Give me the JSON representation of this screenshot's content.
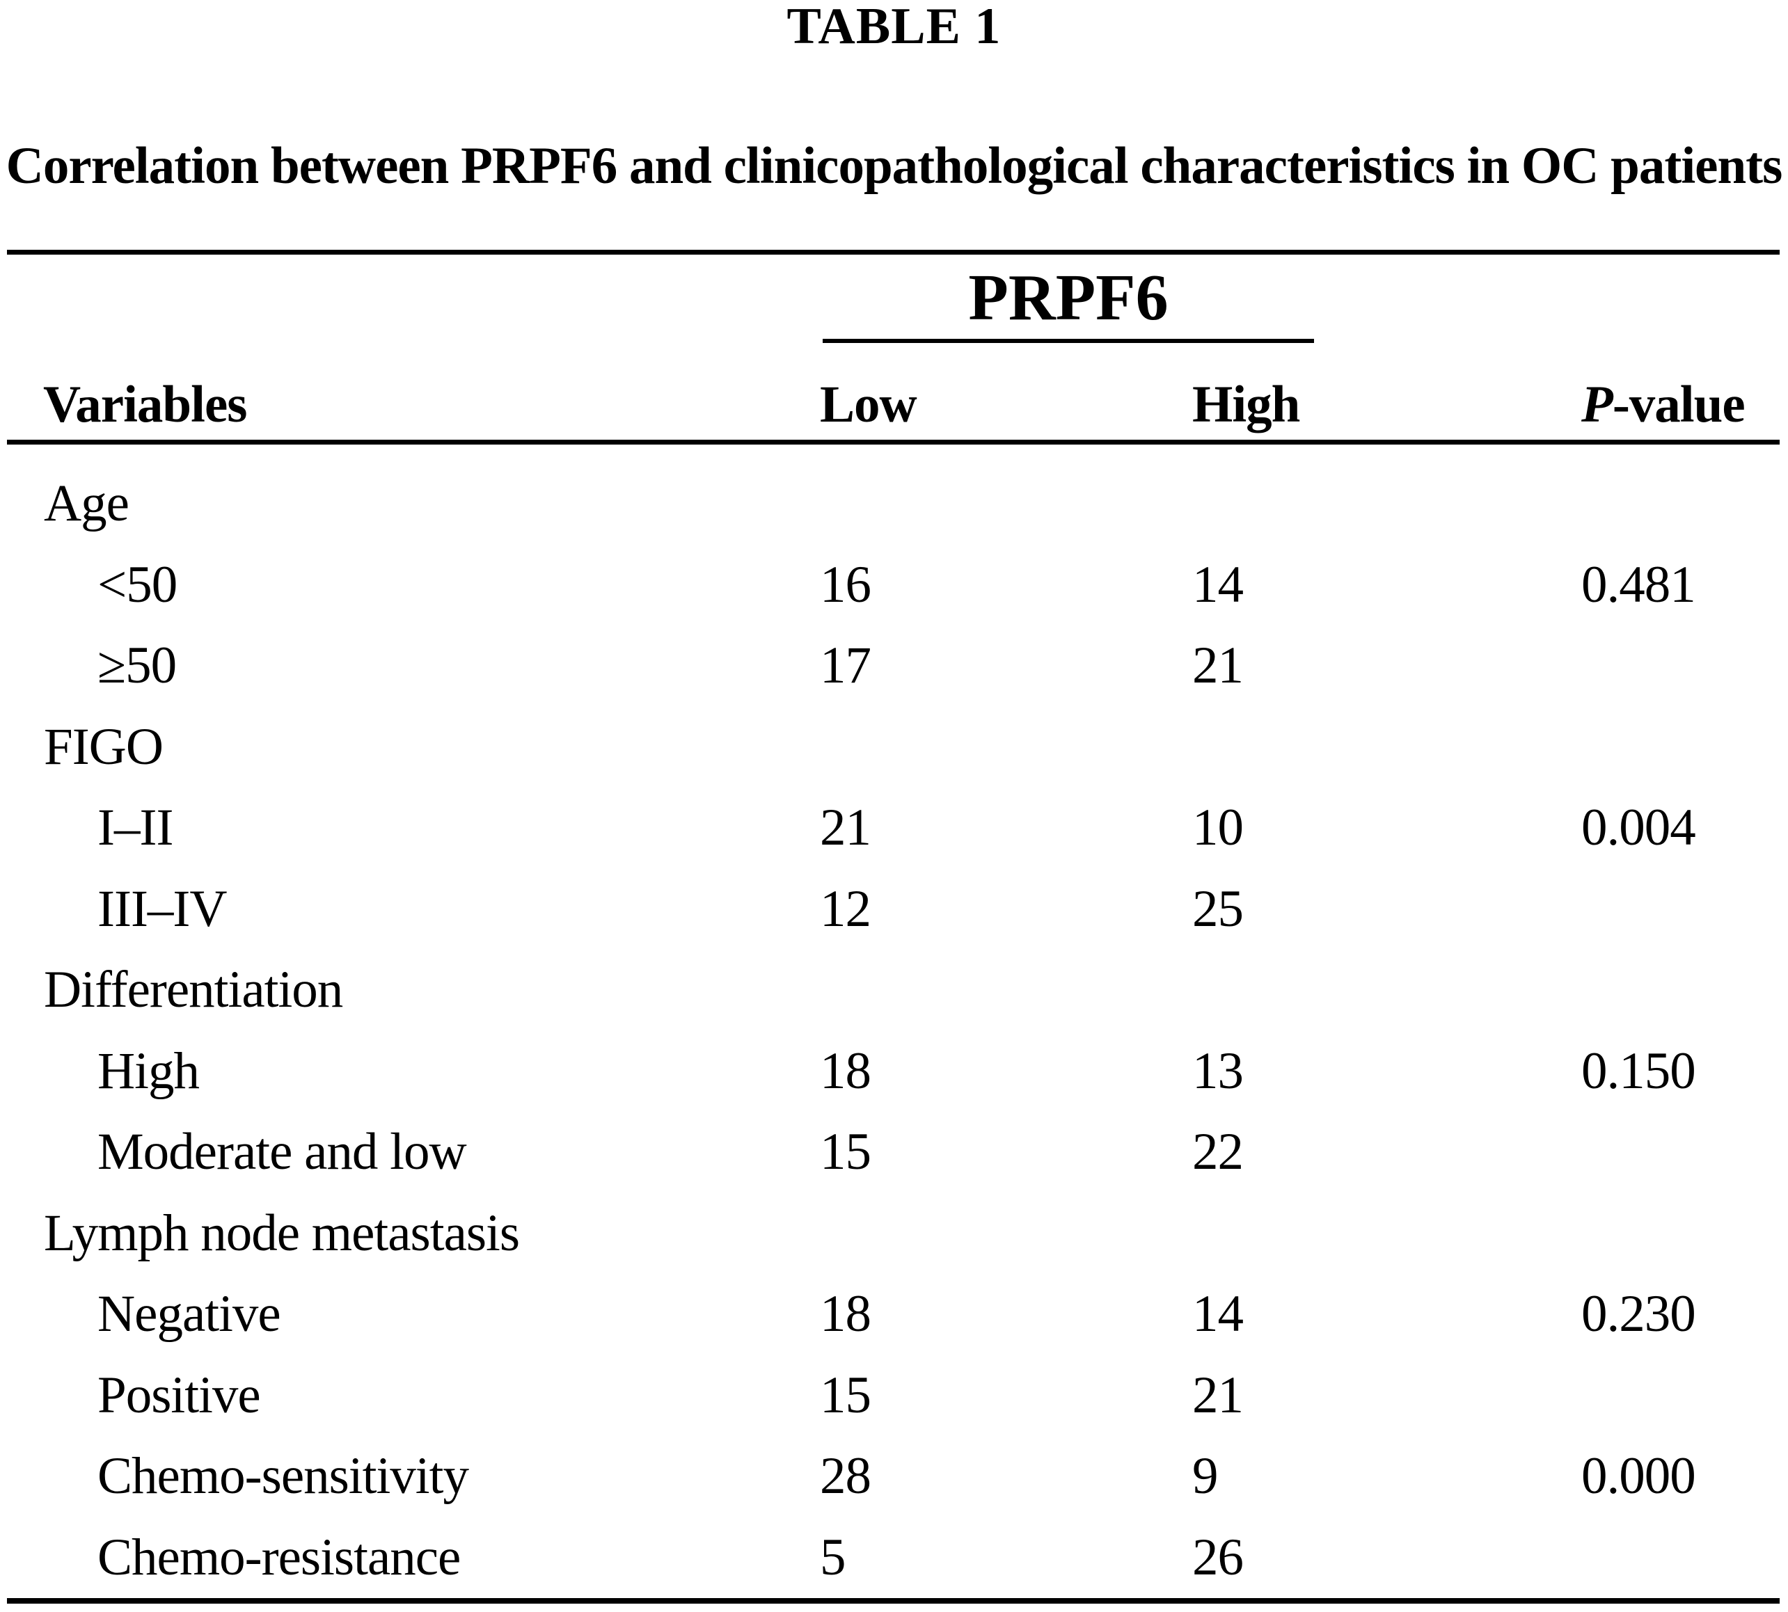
{
  "table_label": "TABLE 1",
  "caption": "Correlation between PRPF6 and clinicopathological characteristics in OC patients",
  "header": {
    "group": "PRPF6",
    "variables": "Variables",
    "low": "Low",
    "high": "High",
    "p_italic": "P",
    "p_rest": "-value"
  },
  "rows": [
    {
      "label": "Age",
      "type": "group",
      "low": "",
      "high": "",
      "p": ""
    },
    {
      "label": "<50",
      "type": "sub",
      "low": "16",
      "high": "14",
      "p": "0.481"
    },
    {
      "label": "≥50",
      "type": "sub",
      "low": "17",
      "high": "21",
      "p": ""
    },
    {
      "label": "FIGO",
      "type": "group",
      "low": "",
      "high": "",
      "p": ""
    },
    {
      "label": "I–II",
      "type": "sub",
      "low": "21",
      "high": "10",
      "p": "0.004"
    },
    {
      "label": "III–IV",
      "type": "sub",
      "low": "12",
      "high": "25",
      "p": ""
    },
    {
      "label": "Differentiation",
      "type": "group",
      "low": "",
      "high": "",
      "p": ""
    },
    {
      "label": "High",
      "type": "sub",
      "low": "18",
      "high": "13",
      "p": "0.150"
    },
    {
      "label": "Moderate and low",
      "type": "sub",
      "low": "15",
      "high": "22",
      "p": ""
    },
    {
      "label": "Lymph node metastasis",
      "type": "group",
      "low": "",
      "high": "",
      "p": ""
    },
    {
      "label": "Negative",
      "type": "sub",
      "low": "18",
      "high": "14",
      "p": "0.230"
    },
    {
      "label": "Positive",
      "type": "sub",
      "low": "15",
      "high": "21",
      "p": ""
    },
    {
      "label": "Chemo-sensitivity",
      "type": "sub",
      "low": "28",
      "high": "9",
      "p": "0.000"
    },
    {
      "label": "Chemo-resistance",
      "type": "sub",
      "low": "5",
      "high": "26",
      "p": ""
    }
  ]
}
